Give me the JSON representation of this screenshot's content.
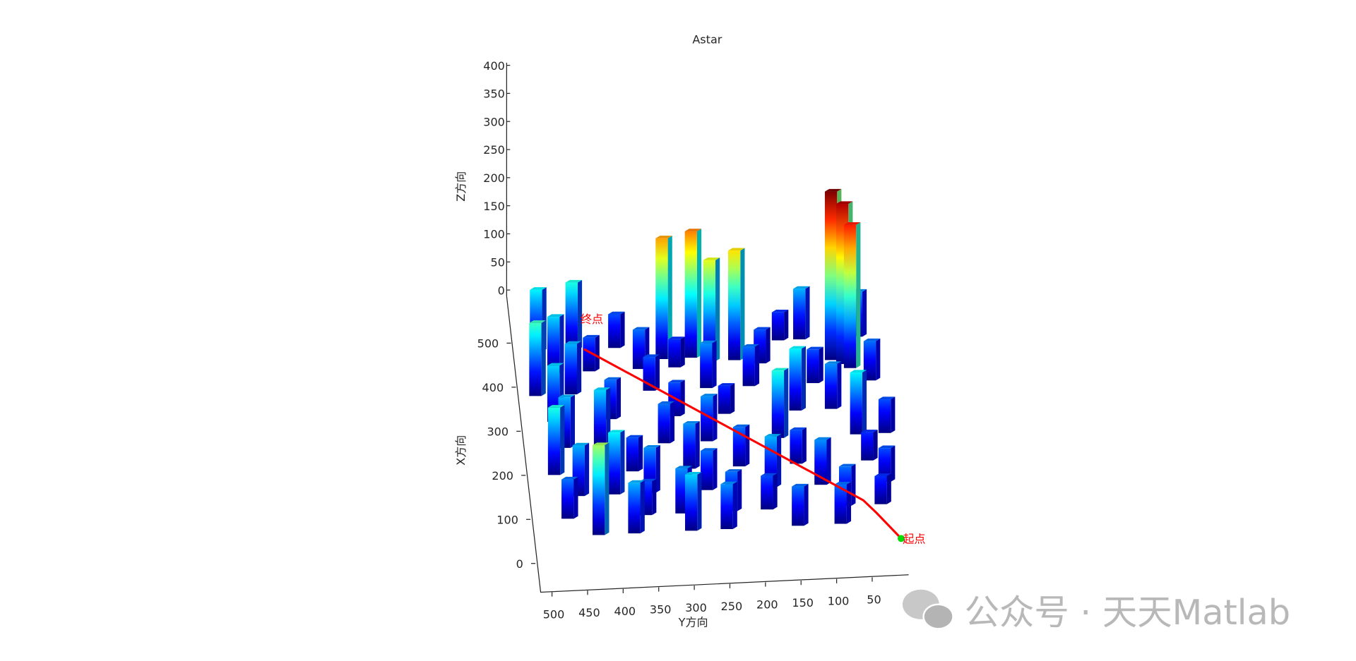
{
  "chart_data": {
    "type": "bar3",
    "title": "Astar",
    "xlabel": "X方向",
    "ylabel": "Y方向",
    "zlabel": "Z方向",
    "xlim": [
      0,
      500
    ],
    "ylim": [
      0,
      500
    ],
    "zlim": [
      0,
      400
    ],
    "xticks": [
      0,
      100,
      200,
      300,
      400,
      500
    ],
    "yticks": [
      50,
      100,
      150,
      200,
      250,
      300,
      350,
      400,
      450,
      500
    ],
    "zticks": [
      0,
      50,
      100,
      150,
      200,
      250,
      300,
      350,
      400
    ],
    "colormap": "jet",
    "bars": [
      {
        "x": 480,
        "y": 490,
        "z": 110
      },
      {
        "x": 480,
        "y": 440,
        "z": 120
      },
      {
        "x": 480,
        "y": 380,
        "z": 60
      },
      {
        "x": 480,
        "y": 150,
        "z": 50
      },
      {
        "x": 480,
        "y": 120,
        "z": 90
      },
      {
        "x": 480,
        "y": 40,
        "z": 80
      },
      {
        "x": 450,
        "y": 316,
        "z": 215
      },
      {
        "x": 450,
        "y": 275,
        "z": 225
      },
      {
        "x": 440,
        "y": 250,
        "z": 180
      },
      {
        "x": 440,
        "y": 215,
        "z": 195
      },
      {
        "x": 430,
        "y": 470,
        "z": 100
      },
      {
        "x": 430,
        "y": 420,
        "z": 60
      },
      {
        "x": 430,
        "y": 350,
        "z": 70
      },
      {
        "x": 430,
        "y": 300,
        "z": 50
      },
      {
        "x": 430,
        "y": 180,
        "z": 60
      },
      {
        "x": 430,
        "y": 80,
        "z": 300
      },
      {
        "x": 420,
        "y": 65,
        "z": 285
      },
      {
        "x": 410,
        "y": 55,
        "z": 255
      },
      {
        "x": 380,
        "y": 500,
        "z": 130
      },
      {
        "x": 380,
        "y": 450,
        "z": 90
      },
      {
        "x": 380,
        "y": 340,
        "z": 60
      },
      {
        "x": 380,
        "y": 260,
        "z": 80
      },
      {
        "x": 380,
        "y": 200,
        "z": 70
      },
      {
        "x": 380,
        "y": 110,
        "z": 60
      },
      {
        "x": 380,
        "y": 30,
        "z": 70
      },
      {
        "x": 320,
        "y": 480,
        "z": 100
      },
      {
        "x": 320,
        "y": 400,
        "z": 70
      },
      {
        "x": 320,
        "y": 310,
        "z": 60
      },
      {
        "x": 320,
        "y": 240,
        "z": 50
      },
      {
        "x": 320,
        "y": 140,
        "z": 110
      },
      {
        "x": 320,
        "y": 90,
        "z": 80
      },
      {
        "x": 260,
        "y": 470,
        "z": 90
      },
      {
        "x": 260,
        "y": 420,
        "z": 100
      },
      {
        "x": 260,
        "y": 330,
        "z": 70
      },
      {
        "x": 260,
        "y": 270,
        "z": 80
      },
      {
        "x": 260,
        "y": 170,
        "z": 120
      },
      {
        "x": 260,
        "y": 60,
        "z": 110
      },
      {
        "x": 260,
        "y": 20,
        "z": 60
      },
      {
        "x": 200,
        "y": 490,
        "z": 120
      },
      {
        "x": 200,
        "y": 380,
        "z": 60
      },
      {
        "x": 200,
        "y": 300,
        "z": 80
      },
      {
        "x": 200,
        "y": 230,
        "z": 70
      },
      {
        "x": 200,
        "y": 150,
        "z": 60
      },
      {
        "x": 200,
        "y": 50,
        "z": 50
      },
      {
        "x": 150,
        "y": 460,
        "z": 90
      },
      {
        "x": 150,
        "y": 410,
        "z": 110
      },
      {
        "x": 150,
        "y": 360,
        "z": 80
      },
      {
        "x": 150,
        "y": 280,
        "z": 70
      },
      {
        "x": 150,
        "y": 190,
        "z": 90
      },
      {
        "x": 150,
        "y": 120,
        "z": 80
      },
      {
        "x": 150,
        "y": 30,
        "z": 60
      },
      {
        "x": 100,
        "y": 480,
        "z": 70
      },
      {
        "x": 100,
        "y": 370,
        "z": 60
      },
      {
        "x": 100,
        "y": 320,
        "z": 80
      },
      {
        "x": 100,
        "y": 250,
        "z": 70
      },
      {
        "x": 100,
        "y": 200,
        "z": 60
      },
      {
        "x": 100,
        "y": 90,
        "z": 70
      },
      {
        "x": 100,
        "y": 40,
        "z": 50
      },
      {
        "x": 60,
        "y": 440,
        "z": 160
      },
      {
        "x": 60,
        "y": 390,
        "z": 90
      },
      {
        "x": 60,
        "y": 310,
        "z": 100
      },
      {
        "x": 60,
        "y": 260,
        "z": 80
      },
      {
        "x": 60,
        "y": 160,
        "z": 70
      },
      {
        "x": 60,
        "y": 100,
        "z": 70
      }
    ],
    "path": {
      "x": [
        20,
        80,
        110,
        480
      ],
      "y": [
        10,
        39,
        55,
        414
      ]
    },
    "path_color": "#ff0000",
    "start_color": "#00dd00",
    "start_label": "起点",
    "goal_label": "终点",
    "label_color": "#ff0000",
    "watermark": "公众号 · 天天Matlab"
  }
}
